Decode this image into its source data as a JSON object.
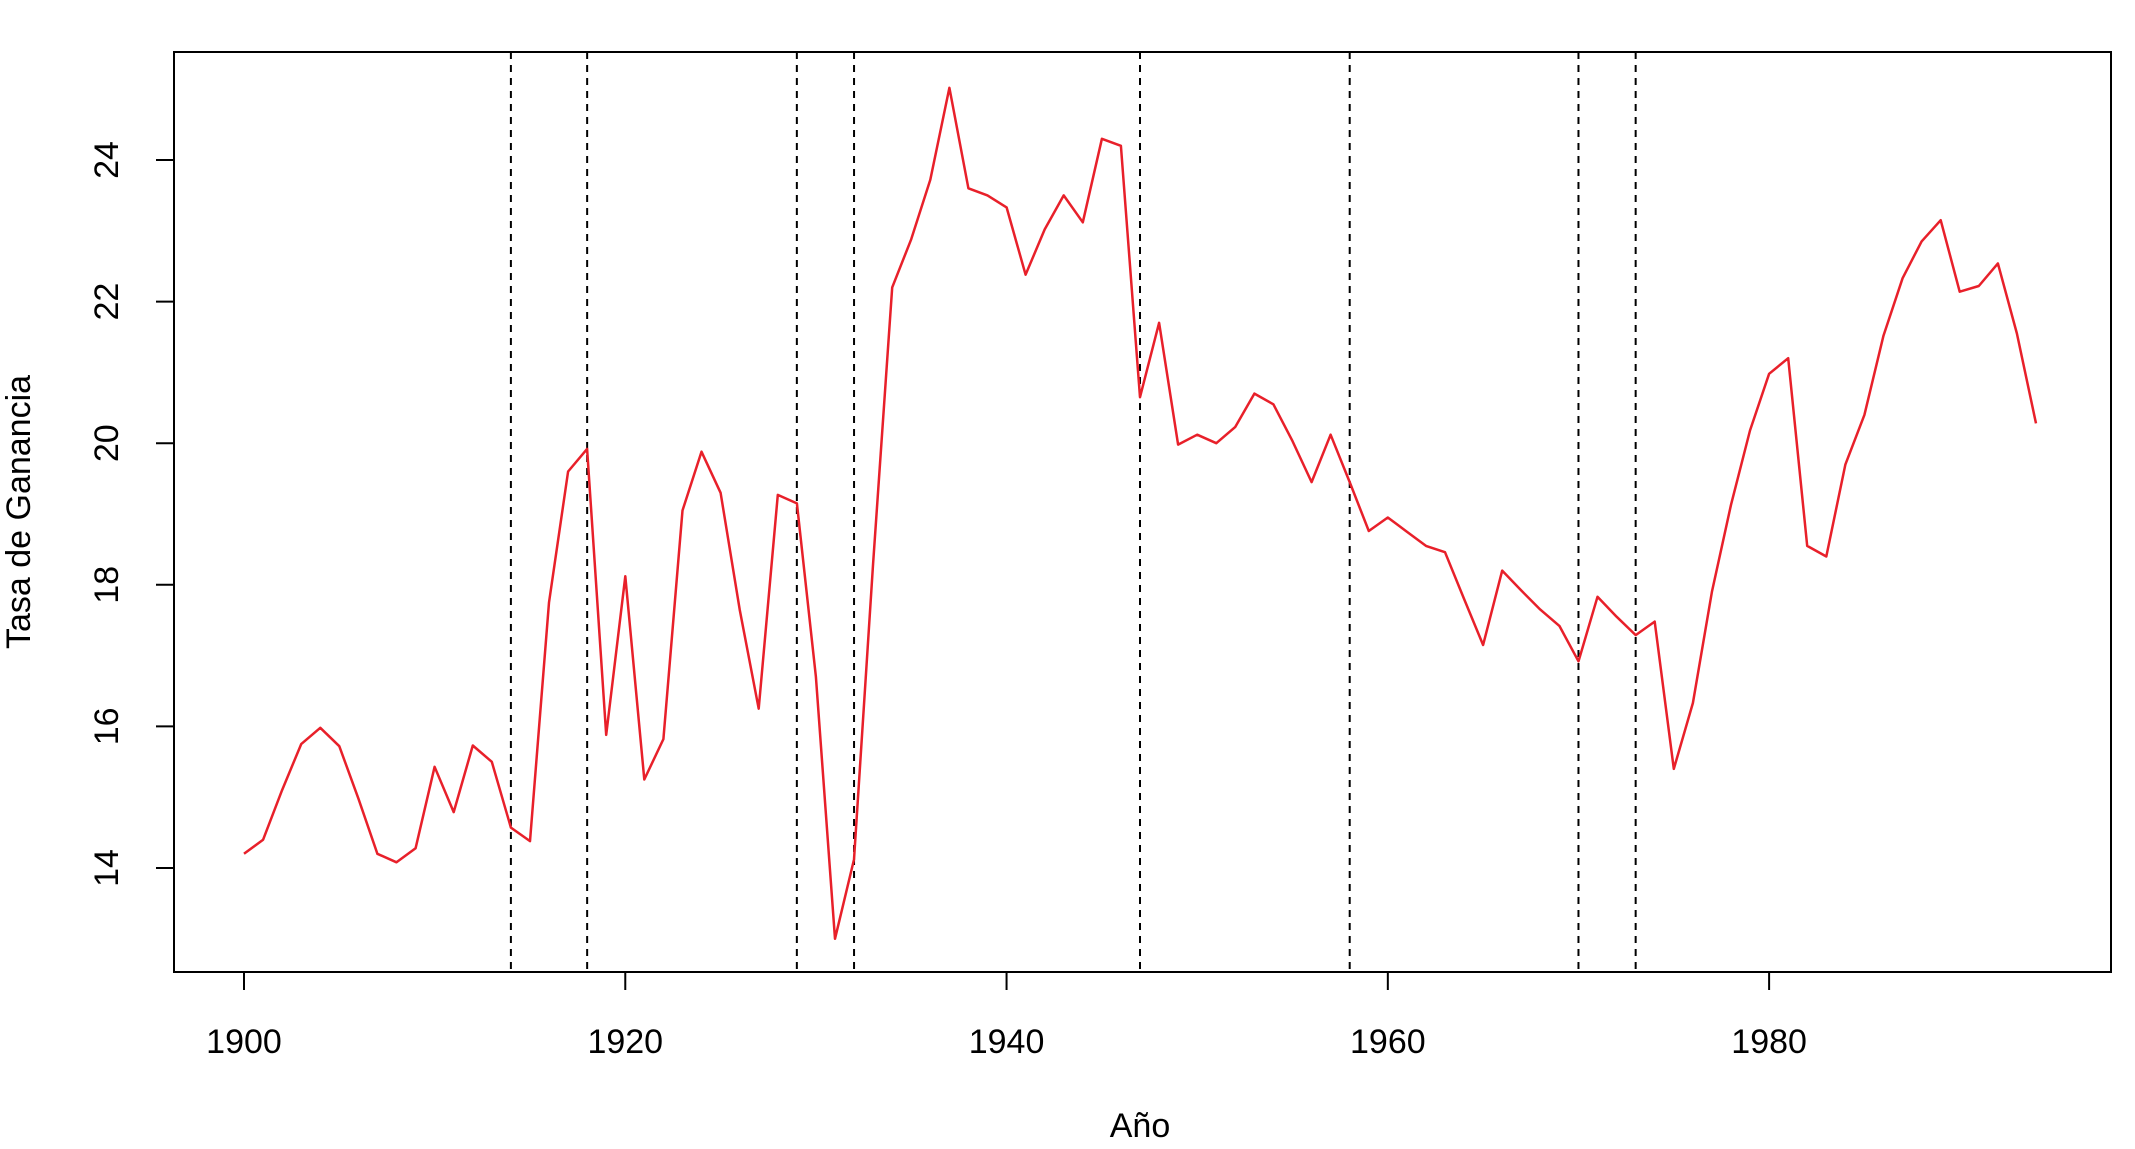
{
  "chart_data": {
    "type": "line",
    "title": "",
    "xlabel": "Año",
    "ylabel": "Tasa de Ganancia",
    "xlim": [
      1900,
      1994
    ],
    "ylim": [
      13,
      25
    ],
    "x_ticks": [
      1900,
      1920,
      1940,
      1960,
      1980
    ],
    "y_ticks": [
      14,
      16,
      18,
      20,
      22,
      24
    ],
    "grid": false,
    "legend": "none",
    "series": [
      {
        "color": "#e8202a",
        "x": [
          1900,
          1901,
          1902,
          1903,
          1904,
          1905,
          1906,
          1907,
          1908,
          1909,
          1910,
          1911,
          1912,
          1913,
          1914,
          1915,
          1916,
          1917,
          1918,
          1919,
          1920,
          1921,
          1922,
          1923,
          1924,
          1925,
          1926,
          1927,
          1928,
          1929,
          1930,
          1931,
          1932,
          1933,
          1934,
          1935,
          1936,
          1937,
          1938,
          1939,
          1940,
          1941,
          1942,
          1943,
          1944,
          1945,
          1946,
          1947,
          1948,
          1949,
          1950,
          1951,
          1952,
          1953,
          1954,
          1955,
          1956,
          1957,
          1958,
          1959,
          1960,
          1961,
          1962,
          1963,
          1964,
          1965,
          1966,
          1967,
          1968,
          1969,
          1970,
          1971,
          1972,
          1973,
          1974,
          1975,
          1976,
          1977,
          1978,
          1979,
          1980,
          1981,
          1982,
          1983,
          1984,
          1985,
          1986,
          1987,
          1988,
          1989,
          1990,
          1991,
          1992,
          1993,
          1994
        ],
        "y": [
          14.2,
          14.4,
          15.1,
          15.75,
          15.98,
          15.72,
          14.98,
          14.2,
          14.08,
          14.28,
          15.43,
          14.79,
          15.73,
          15.5,
          14.57,
          14.38,
          17.75,
          19.6,
          19.92,
          15.88,
          18.12,
          15.25,
          15.82,
          19.05,
          19.88,
          19.3,
          17.65,
          16.25,
          19.27,
          19.15,
          16.7,
          13.0,
          14.12,
          18.3,
          22.2,
          22.88,
          23.72,
          25.02,
          23.6,
          23.5,
          23.33,
          22.38,
          23.02,
          23.5,
          23.12,
          24.3,
          24.2,
          20.65,
          21.7,
          19.98,
          20.12,
          20.0,
          20.23,
          20.7,
          20.55,
          20.03,
          19.45,
          20.12,
          19.45,
          18.76,
          18.95,
          18.75,
          18.55,
          18.46,
          17.8,
          17.15,
          18.2,
          17.92,
          17.65,
          17.42,
          16.92,
          17.83,
          17.55,
          17.29,
          17.48,
          15.4,
          16.33,
          17.9,
          19.13,
          20.18,
          20.98,
          21.2,
          18.55,
          18.4,
          19.7,
          20.4,
          21.52,
          22.33,
          22.85,
          23.15,
          22.14,
          22.22,
          22.54,
          21.55,
          20.28
        ]
      }
    ],
    "reference_lines": {
      "orientation": "vertical",
      "style": "dashed",
      "color": "#000000",
      "x": [
        1914,
        1918,
        1929,
        1932,
        1947,
        1958,
        1970,
        1973
      ]
    }
  }
}
